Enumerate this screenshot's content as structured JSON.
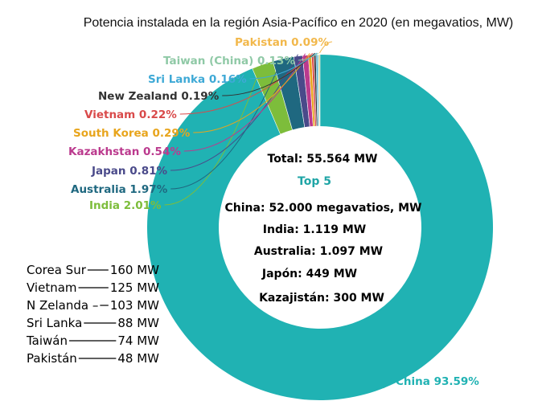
{
  "chart_data": {
    "type": "donut",
    "title": "Potencia instalada en la región Asia-Pacífico en 2020 (en megavatios, MW)",
    "slices": [
      {
        "label": "China 93.59%",
        "value": 93.59,
        "color": "#20b2b3"
      },
      {
        "label": "India 2.01%",
        "value": 2.01,
        "color": "#7dbd3b"
      },
      {
        "label": "Australia 1.97%",
        "value": 1.97,
        "color": "#1f6880"
      },
      {
        "label": "Japan 0.81%",
        "value": 0.81,
        "color": "#4a4a8a"
      },
      {
        "label": "Kazakhstan 0.54%",
        "value": 0.54,
        "color": "#bb3a8e"
      },
      {
        "label": "South Korea 0.29%",
        "value": 0.29,
        "color": "#e8a51d"
      },
      {
        "label": "Vietnam 0.22%",
        "value": 0.22,
        "color": "#d94a4a"
      },
      {
        "label": "New Zealand 0.19%",
        "value": 0.19,
        "color": "#333333"
      },
      {
        "label": "Sri Lanka 0.16%",
        "value": 0.16,
        "color": "#3ea9d6"
      },
      {
        "label": "Taiwan (China) 0.13%",
        "value": 0.13,
        "color": "#8fc9a6"
      },
      {
        "label": "Pakistan 0.09%",
        "value": 0.09,
        "color": "#f2b84b"
      }
    ],
    "center": {
      "total": "Total: 55.564 MW",
      "top5_heading": "Top 5",
      "lines": [
        "China: 52.000 megavatios, MW",
        "India: 1.119 MW",
        "Australia: 1.097 MW",
        "Japón: 449 MW",
        "Kazajistán: 300 MW"
      ]
    },
    "side_legend": [
      {
        "name": "Corea Sur",
        "value": "160 MW"
      },
      {
        "name": "Vietnam",
        "value": "125 MW"
      },
      {
        "name": "N Zelanda –",
        "value": "103 MW"
      },
      {
        "name": "Sri Lanka",
        "value": "88 MW"
      },
      {
        "name": "Taiwán",
        "value": "74 MW"
      },
      {
        "name": "Pakistán",
        "value": "48 MW"
      }
    ]
  }
}
